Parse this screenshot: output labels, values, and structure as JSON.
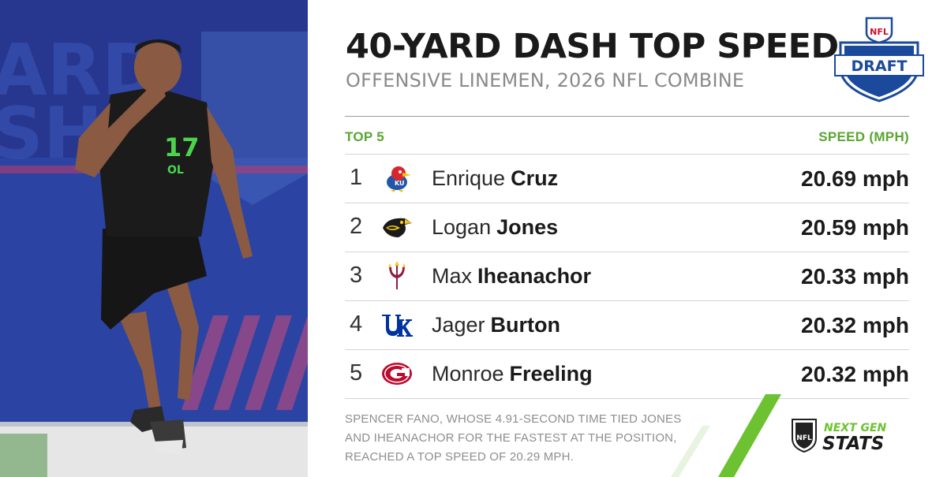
{
  "header": {
    "title": "40-YARD DASH TOP SPEED",
    "subtitle": "OFFENSIVE LINEMEN, 2026 NFL COMBINE"
  },
  "draft_logo": {
    "icon": "nfl-draft-shield-icon",
    "shield_text": "NFL",
    "banner_text": "DRAFT"
  },
  "table": {
    "left_header": "TOP 5",
    "right_header": "SPEED (MPH)",
    "rows": [
      {
        "rank": "1",
        "first": "Enrique",
        "last": "Cruz",
        "speed": "20.69 mph",
        "school_icon": "kansas-jayhawk-icon"
      },
      {
        "rank": "2",
        "first": "Logan",
        "last": "Jones",
        "speed": "20.59 mph",
        "school_icon": "iowa-hawkeye-icon"
      },
      {
        "rank": "3",
        "first": "Max",
        "last": "Iheanachor",
        "speed": "20.33 mph",
        "school_icon": "arizona-state-pitchfork-icon"
      },
      {
        "rank": "4",
        "first": "Jager",
        "last": "Burton",
        "speed": "20.32 mph",
        "school_icon": "kentucky-uk-icon"
      },
      {
        "rank": "5",
        "first": "Monroe",
        "last": "Freeling",
        "speed": "20.32 mph",
        "school_icon": "georgia-g-icon"
      }
    ]
  },
  "footnote": "SPENCER FANO, WHOSE 4.91-SECOND TIME TIED JONES AND IHEANACHOR FOR THE FASTEST AT THE POSITION, REACHED A TOP SPEED OF 20.29 MPH.",
  "ngs_logo": {
    "line1": "NEXT GEN",
    "line2": "STATS",
    "shield_text": "NFL"
  },
  "photo": {
    "jersey_number": "17",
    "jersey_position": "OL"
  },
  "colors": {
    "accent_green": "#5aa532",
    "title": "#1a1a1a",
    "subtitle": "#8a8a8a",
    "draft_blue": "#1b4a9c"
  }
}
